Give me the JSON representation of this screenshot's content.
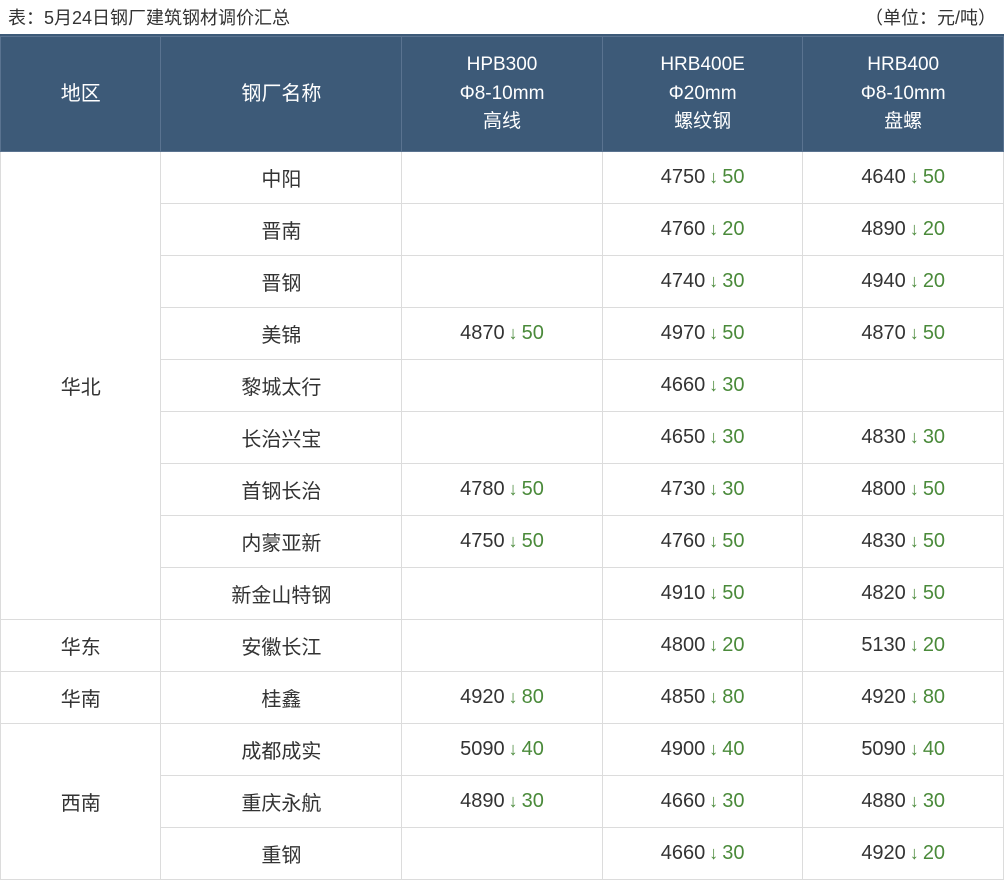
{
  "title_left": "表：5月24日钢厂建筑钢材调价汇总",
  "title_right": "（单位：元/吨）",
  "columns": {
    "region": "地区",
    "mill": "钢厂名称",
    "p1": {
      "l1": "HPB300",
      "l2": "Φ8-10mm",
      "l3": "高线"
    },
    "p2": {
      "l1": "HRB400E",
      "l2": "Φ20mm",
      "l3": "螺纹钢"
    },
    "p3": {
      "l1": "HRB400",
      "l2": "Φ8-10mm",
      "l3": "盘螺"
    }
  },
  "arrow_glyph": "↓",
  "change_color": "#4a8a3a",
  "regions": [
    {
      "name": "华北",
      "rows": [
        {
          "mill": "中阳",
          "p1": null,
          "p2": {
            "v": 4750,
            "d": 50
          },
          "p3": {
            "v": 4640,
            "d": 50
          }
        },
        {
          "mill": "晋南",
          "p1": null,
          "p2": {
            "v": 4760,
            "d": 20
          },
          "p3": {
            "v": 4890,
            "d": 20
          }
        },
        {
          "mill": "晋钢",
          "p1": null,
          "p2": {
            "v": 4740,
            "d": 30
          },
          "p3": {
            "v": 4940,
            "d": 20
          }
        },
        {
          "mill": "美锦",
          "p1": {
            "v": 4870,
            "d": 50
          },
          "p2": {
            "v": 4970,
            "d": 50
          },
          "p3": {
            "v": 4870,
            "d": 50
          }
        },
        {
          "mill": "黎城太行",
          "p1": null,
          "p2": {
            "v": 4660,
            "d": 30
          },
          "p3": null
        },
        {
          "mill": "长治兴宝",
          "p1": null,
          "p2": {
            "v": 4650,
            "d": 30
          },
          "p3": {
            "v": 4830,
            "d": 30
          }
        },
        {
          "mill": "首钢长治",
          "p1": {
            "v": 4780,
            "d": 50
          },
          "p2": {
            "v": 4730,
            "d": 30
          },
          "p3": {
            "v": 4800,
            "d": 50
          }
        },
        {
          "mill": "内蒙亚新",
          "p1": {
            "v": 4750,
            "d": 50
          },
          "p2": {
            "v": 4760,
            "d": 50
          },
          "p3": {
            "v": 4830,
            "d": 50
          }
        },
        {
          "mill": "新金山特钢",
          "p1": null,
          "p2": {
            "v": 4910,
            "d": 50
          },
          "p3": {
            "v": 4820,
            "d": 50
          }
        }
      ]
    },
    {
      "name": "华东",
      "rows": [
        {
          "mill": "安徽长江",
          "p1": null,
          "p2": {
            "v": 4800,
            "d": 20
          },
          "p3": {
            "v": 5130,
            "d": 20
          }
        }
      ]
    },
    {
      "name": "华南",
      "rows": [
        {
          "mill": "桂鑫",
          "p1": {
            "v": 4920,
            "d": 80
          },
          "p2": {
            "v": 4850,
            "d": 80
          },
          "p3": {
            "v": 4920,
            "d": 80
          }
        }
      ]
    },
    {
      "name": "西南",
      "rows": [
        {
          "mill": "成都成实",
          "p1": {
            "v": 5090,
            "d": 40
          },
          "p2": {
            "v": 4900,
            "d": 40
          },
          "p3": {
            "v": 5090,
            "d": 40
          }
        },
        {
          "mill": "重庆永航",
          "p1": {
            "v": 4890,
            "d": 30
          },
          "p2": {
            "v": 4660,
            "d": 30
          },
          "p3": {
            "v": 4880,
            "d": 30
          }
        },
        {
          "mill": "重钢",
          "p1": null,
          "p2": {
            "v": 4660,
            "d": 30
          },
          "p3": {
            "v": 4920,
            "d": 20
          }
        }
      ]
    }
  ]
}
